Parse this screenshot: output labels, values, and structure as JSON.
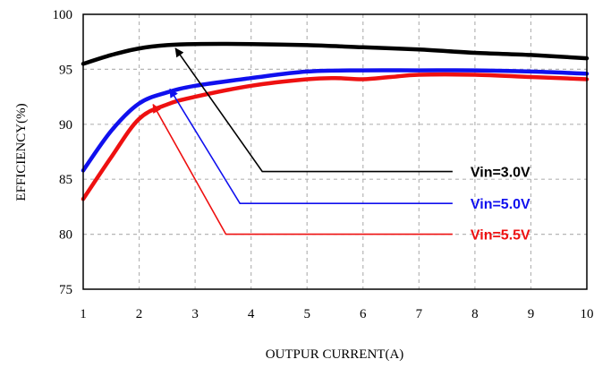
{
  "chart_data": {
    "type": "line",
    "title": "",
    "xlabel": "OUTPUR CURRENT(A)",
    "ylabel": "EFFICIENCY(%)",
    "xlim": [
      1,
      10
    ],
    "ylim": [
      75,
      100
    ],
    "x_ticks": [
      "1",
      "2",
      "3",
      "4",
      "5",
      "6",
      "7",
      "8",
      "9",
      "10"
    ],
    "y_ticks": [
      "75",
      "80",
      "85",
      "90",
      "95",
      "100"
    ],
    "grid": true,
    "series": [
      {
        "name": "Vin=3.0V",
        "color": "#000000",
        "x": [
          1.0,
          1.5,
          2.0,
          2.5,
          3.0,
          4.0,
          5.0,
          6.0,
          7.0,
          8.0,
          9.0,
          10.0
        ],
        "y": [
          95.5,
          96.3,
          96.9,
          97.2,
          97.3,
          97.3,
          97.2,
          97.0,
          96.8,
          96.5,
          96.3,
          96.0
        ]
      },
      {
        "name": "Vin=5.0V",
        "color": "#1010ee",
        "x": [
          1.0,
          1.5,
          2.0,
          2.5,
          3.0,
          4.0,
          5.0,
          6.0,
          7.0,
          8.0,
          9.0,
          10.0
        ],
        "y": [
          85.8,
          89.4,
          91.9,
          92.9,
          93.5,
          94.2,
          94.8,
          94.9,
          94.9,
          94.9,
          94.8,
          94.6
        ]
      },
      {
        "name": "Vin=5.5V",
        "color": "#ee1010",
        "x": [
          1.0,
          1.5,
          2.0,
          2.5,
          3.0,
          4.0,
          5.0,
          5.5,
          6.0,
          6.5,
          7.0,
          8.0,
          9.0,
          10.0
        ],
        "y": [
          83.2,
          87.0,
          90.5,
          91.8,
          92.5,
          93.5,
          94.1,
          94.2,
          94.1,
          94.3,
          94.5,
          94.5,
          94.3,
          94.1
        ]
      }
    ],
    "annotations": [
      {
        "text": "Vin=3.0V",
        "color": "#000000",
        "path": [
          [
            7.6,
            85.7
          ],
          [
            4.2,
            85.7
          ],
          [
            2.65,
            96.9
          ]
        ]
      },
      {
        "text": "Vin=5.0V",
        "color": "#1010ee",
        "path": [
          [
            7.6,
            82.8
          ],
          [
            3.8,
            82.8
          ],
          [
            2.55,
            93.2
          ]
        ]
      },
      {
        "text": "Vin=5.5V",
        "color": "#ee1010",
        "path": [
          [
            7.6,
            80.0
          ],
          [
            3.55,
            80.0
          ],
          [
            2.25,
            91.8
          ]
        ]
      }
    ]
  }
}
